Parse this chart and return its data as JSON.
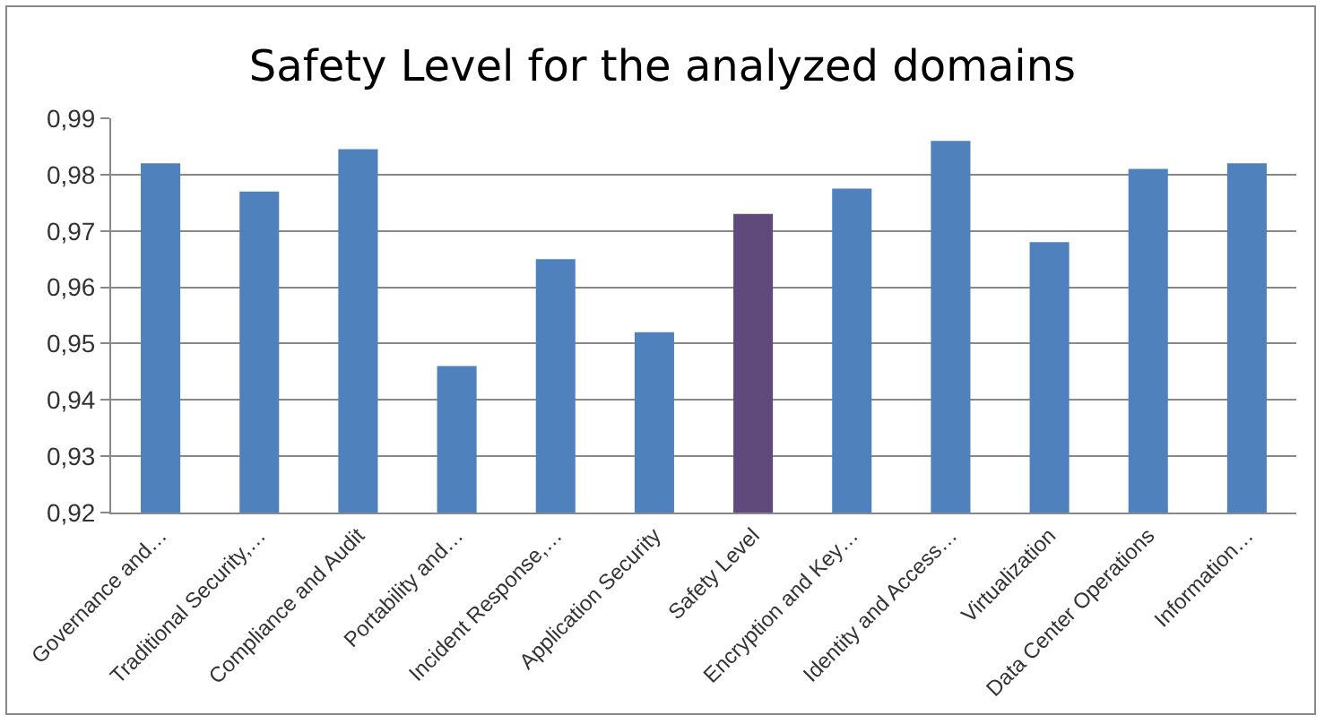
{
  "chart_data": {
    "type": "bar",
    "title": "Safety Level for the analyzed domains",
    "categories": [
      "Governance and…",
      "Traditional Security,…",
      "Compliance and Audit",
      "Portability and…",
      "Incident Response,…",
      "Application Security",
      "Safety Level",
      "Encryption and Key…",
      "Identity and Access…",
      "Virtualization",
      "Data Center Operations",
      "Information…"
    ],
    "values": [
      0.982,
      0.977,
      0.9845,
      0.946,
      0.965,
      0.952,
      0.973,
      0.9775,
      0.986,
      0.968,
      0.981,
      0.982
    ],
    "colors": [
      "#4f81bd",
      "#4f81bd",
      "#4f81bd",
      "#4f81bd",
      "#4f81bd",
      "#4f81bd",
      "#604a7b",
      "#4f81bd",
      "#4f81bd",
      "#4f81bd",
      "#4f81bd",
      "#4f81bd"
    ],
    "ylim": [
      0.92,
      0.99
    ],
    "yticks": [
      {
        "value": 0.92,
        "label": "0,92"
      },
      {
        "value": 0.93,
        "label": "0,93"
      },
      {
        "value": 0.94,
        "label": "0,94"
      },
      {
        "value": 0.95,
        "label": "0,95"
      },
      {
        "value": 0.96,
        "label": "0,96"
      },
      {
        "value": 0.97,
        "label": "0,97"
      },
      {
        "value": 0.98,
        "label": "0,98"
      },
      {
        "value": 0.99,
        "label": "0,99"
      }
    ],
    "grid": "y"
  }
}
